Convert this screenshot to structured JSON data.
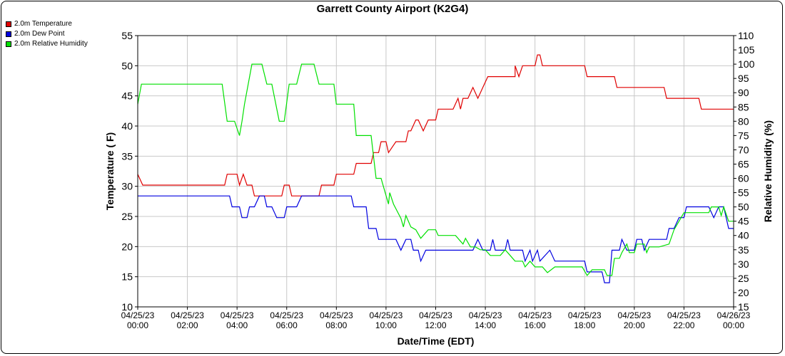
{
  "chart_data": {
    "type": "line",
    "title": "Garrett County Airport (K2G4)",
    "xlabel": "Date/Time (EDT)",
    "ylabel": "Temperature ( F)",
    "y2label": "Relative Humidity (%)",
    "xlim_hours": [
      0,
      24
    ],
    "ylim": [
      10,
      55
    ],
    "y2lim": [
      15,
      110
    ],
    "grid": true,
    "legend_position": "top-left",
    "x_ticks": [
      {
        "h": 0,
        "date": "04/25/23",
        "time": "00:00"
      },
      {
        "h": 2,
        "date": "04/25/23",
        "time": "02:00"
      },
      {
        "h": 4,
        "date": "04/25/23",
        "time": "04:00"
      },
      {
        "h": 6,
        "date": "04/25/23",
        "time": "06:00"
      },
      {
        "h": 8,
        "date": "04/25/23",
        "time": "08:00"
      },
      {
        "h": 10,
        "date": "04/25/23",
        "time": "10:00"
      },
      {
        "h": 12,
        "date": "04/25/23",
        "time": "12:00"
      },
      {
        "h": 14,
        "date": "04/25/23",
        "time": "14:00"
      },
      {
        "h": 16,
        "date": "04/25/23",
        "time": "16:00"
      },
      {
        "h": 18,
        "date": "04/25/23",
        "time": "18:00"
      },
      {
        "h": 20,
        "date": "04/25/23",
        "time": "20:00"
      },
      {
        "h": 22,
        "date": "04/25/23",
        "time": "22:00"
      },
      {
        "h": 24,
        "date": "04/26/23",
        "time": "00:00"
      }
    ],
    "y_ticks": [
      "10",
      "15",
      "20",
      "25",
      "30",
      "35",
      "40",
      "45",
      "50",
      "55"
    ],
    "y2_ticks": [
      "15",
      "20",
      "25",
      "30",
      "35",
      "40",
      "45",
      "50",
      "55",
      "60",
      "65",
      "70",
      "75",
      "80",
      "85",
      "90",
      "95",
      "100",
      "105",
      "110"
    ],
    "series": [
      {
        "name": "2.0m Temperature",
        "color": "#e00000",
        "axis": "left",
        "points": [
          [
            0.0,
            32
          ],
          [
            0.2,
            30.2
          ],
          [
            3.5,
            30.2
          ],
          [
            3.6,
            32
          ],
          [
            4.0,
            32
          ],
          [
            4.1,
            30.2
          ],
          [
            4.25,
            32
          ],
          [
            4.4,
            30.2
          ],
          [
            4.6,
            30.2
          ],
          [
            4.7,
            28.4
          ],
          [
            5.8,
            28.4
          ],
          [
            5.9,
            30.2
          ],
          [
            6.1,
            30.2
          ],
          [
            6.2,
            28.4
          ],
          [
            7.3,
            28.4
          ],
          [
            7.4,
            30.2
          ],
          [
            7.9,
            30.2
          ],
          [
            8.0,
            32
          ],
          [
            8.7,
            32
          ],
          [
            8.8,
            33.8
          ],
          [
            9.4,
            33.8
          ],
          [
            9.5,
            35.6
          ],
          [
            9.7,
            35.6
          ],
          [
            9.8,
            37.4
          ],
          [
            10.0,
            37.4
          ],
          [
            10.1,
            35.6
          ],
          [
            10.4,
            37.4
          ],
          [
            10.8,
            37.4
          ],
          [
            10.9,
            39.2
          ],
          [
            11.0,
            39.2
          ],
          [
            11.2,
            41
          ],
          [
            11.3,
            41
          ],
          [
            11.5,
            39.2
          ],
          [
            11.7,
            41
          ],
          [
            12.0,
            41
          ],
          [
            12.1,
            42.8
          ],
          [
            12.7,
            42.8
          ],
          [
            12.9,
            44.6
          ],
          [
            13.0,
            42.8
          ],
          [
            13.1,
            44.6
          ],
          [
            13.3,
            44.6
          ],
          [
            13.5,
            46.4
          ],
          [
            13.7,
            44.6
          ],
          [
            13.9,
            46.4
          ],
          [
            14.1,
            48.2
          ],
          [
            15.0,
            48.2
          ],
          [
            15.2,
            48.2
          ],
          [
            15.2,
            50
          ],
          [
            15.35,
            48.2
          ],
          [
            15.5,
            50
          ],
          [
            16.0,
            50
          ],
          [
            16.1,
            51.8
          ],
          [
            16.2,
            51.8
          ],
          [
            16.3,
            50
          ],
          [
            16.3,
            50
          ],
          [
            18.0,
            50
          ],
          [
            18.1,
            48.2
          ],
          [
            19.2,
            48.2
          ],
          [
            19.3,
            46.4
          ],
          [
            20.0,
            46.4
          ],
          [
            21.0,
            46.4
          ],
          [
            21.2,
            46.4
          ],
          [
            21.3,
            44.6
          ],
          [
            22.0,
            44.6
          ],
          [
            22.6,
            44.6
          ],
          [
            22.7,
            42.8
          ],
          [
            23.0,
            42.8
          ],
          [
            23.5,
            42.8
          ],
          [
            24.0,
            42.8
          ]
        ]
      },
      {
        "name": "2.0m Dew Point",
        "color": "#0000e0",
        "axis": "left",
        "points": [
          [
            0.0,
            28.4
          ],
          [
            3.7,
            28.4
          ],
          [
            3.8,
            26.6
          ],
          [
            4.1,
            26.6
          ],
          [
            4.2,
            24.8
          ],
          [
            4.4,
            24.8
          ],
          [
            4.5,
            26.6
          ],
          [
            4.7,
            26.6
          ],
          [
            4.9,
            28.4
          ],
          [
            5.1,
            28.4
          ],
          [
            5.2,
            26.6
          ],
          [
            5.4,
            26.6
          ],
          [
            5.6,
            24.8
          ],
          [
            5.9,
            24.8
          ],
          [
            6.0,
            26.6
          ],
          [
            6.4,
            26.6
          ],
          [
            6.6,
            28.4
          ],
          [
            8.6,
            28.4
          ],
          [
            8.7,
            26.6
          ],
          [
            9.2,
            26.6
          ],
          [
            9.3,
            23
          ],
          [
            9.6,
            23
          ],
          [
            9.7,
            21.2
          ],
          [
            10.4,
            21.2
          ],
          [
            10.6,
            19.4
          ],
          [
            10.8,
            21.2
          ],
          [
            11.0,
            21.2
          ],
          [
            11.1,
            19.4
          ],
          [
            11.3,
            19.4
          ],
          [
            11.4,
            17.6
          ],
          [
            11.6,
            19.4
          ],
          [
            13.5,
            19.4
          ],
          [
            13.7,
            21.2
          ],
          [
            13.9,
            19.4
          ],
          [
            14.2,
            19.4
          ],
          [
            14.3,
            21.2
          ],
          [
            14.4,
            19.4
          ],
          [
            14.8,
            19.4
          ],
          [
            14.9,
            21.2
          ],
          [
            15.0,
            19.4
          ],
          [
            15.5,
            19.4
          ],
          [
            15.6,
            17.6
          ],
          [
            15.8,
            19.4
          ],
          [
            15.9,
            17.6
          ],
          [
            16.1,
            19.4
          ],
          [
            16.2,
            17.6
          ],
          [
            16.6,
            19.4
          ],
          [
            16.8,
            17.6
          ],
          [
            18.0,
            17.6
          ],
          [
            18.1,
            15.8
          ],
          [
            18.7,
            15.8
          ],
          [
            18.8,
            14
          ],
          [
            19.0,
            14
          ],
          [
            19.1,
            19.4
          ],
          [
            19.4,
            19.4
          ],
          [
            19.5,
            21.2
          ],
          [
            19.7,
            19.4
          ],
          [
            20.0,
            19.4
          ],
          [
            20.1,
            21.2
          ],
          [
            20.3,
            21.2
          ],
          [
            20.4,
            19.4
          ],
          [
            20.6,
            21.2
          ],
          [
            21.0,
            21.2
          ],
          [
            21.3,
            21.2
          ],
          [
            21.4,
            23
          ],
          [
            21.6,
            23
          ],
          [
            21.8,
            24.8
          ],
          [
            22.0,
            24.8
          ],
          [
            22.1,
            26.6
          ],
          [
            23.0,
            26.6
          ],
          [
            23.2,
            24.8
          ],
          [
            23.4,
            26.6
          ],
          [
            23.6,
            26.6
          ],
          [
            23.8,
            23
          ],
          [
            24.0,
            23
          ]
        ]
      },
      {
        "name": "2.0m Relative Humidity",
        "color": "#00e000",
        "axis": "right",
        "points": [
          [
            0.0,
            86
          ],
          [
            0.15,
            93
          ],
          [
            3.4,
            93
          ],
          [
            3.6,
            80
          ],
          [
            3.9,
            80
          ],
          [
            4.1,
            75
          ],
          [
            4.2,
            80
          ],
          [
            4.3,
            86
          ],
          [
            4.6,
            100
          ],
          [
            5.0,
            100
          ],
          [
            5.2,
            93
          ],
          [
            5.4,
            93
          ],
          [
            5.7,
            80
          ],
          [
            5.9,
            80
          ],
          [
            6.1,
            93
          ],
          [
            6.4,
            93
          ],
          [
            6.6,
            100
          ],
          [
            7.1,
            100
          ],
          [
            7.3,
            93
          ],
          [
            7.9,
            93
          ],
          [
            8.0,
            86
          ],
          [
            8.7,
            86
          ],
          [
            8.8,
            75
          ],
          [
            9.4,
            75
          ],
          [
            9.6,
            60
          ],
          [
            9.8,
            60
          ],
          [
            10.0,
            54
          ],
          [
            10.1,
            51
          ],
          [
            10.15,
            55
          ],
          [
            10.3,
            51
          ],
          [
            10.6,
            46
          ],
          [
            10.7,
            43
          ],
          [
            10.8,
            47
          ],
          [
            11.0,
            43
          ],
          [
            11.2,
            42
          ],
          [
            11.4,
            39
          ],
          [
            11.7,
            42
          ],
          [
            12.0,
            42
          ],
          [
            12.1,
            40
          ],
          [
            12.8,
            40
          ],
          [
            13.0,
            38
          ],
          [
            13.1,
            37
          ],
          [
            13.2,
            39
          ],
          [
            13.4,
            36
          ],
          [
            13.6,
            36
          ],
          [
            13.8,
            35
          ],
          [
            14.0,
            35
          ],
          [
            14.2,
            33
          ],
          [
            14.6,
            33
          ],
          [
            14.8,
            35
          ],
          [
            15.0,
            33
          ],
          [
            15.2,
            31
          ],
          [
            15.5,
            31
          ],
          [
            15.6,
            29
          ],
          [
            15.8,
            31
          ],
          [
            16.0,
            29
          ],
          [
            16.3,
            29
          ],
          [
            16.5,
            27
          ],
          [
            16.8,
            29
          ],
          [
            17.9,
            29
          ],
          [
            18.1,
            26
          ],
          [
            18.3,
            28
          ],
          [
            18.8,
            28
          ],
          [
            18.9,
            26
          ],
          [
            19.1,
            26
          ],
          [
            19.2,
            32
          ],
          [
            19.4,
            32
          ],
          [
            19.5,
            34
          ],
          [
            19.7,
            37
          ],
          [
            19.8,
            34
          ],
          [
            20.0,
            34
          ],
          [
            20.1,
            37
          ],
          [
            20.4,
            37
          ],
          [
            20.5,
            34
          ],
          [
            20.6,
            36
          ],
          [
            21.0,
            36
          ],
          [
            21.4,
            37
          ],
          [
            21.6,
            42
          ],
          [
            21.8,
            45
          ],
          [
            22.0,
            48
          ],
          [
            23.0,
            48
          ],
          [
            23.1,
            50
          ],
          [
            23.4,
            50
          ],
          [
            23.5,
            47
          ],
          [
            23.6,
            50
          ],
          [
            23.8,
            45
          ],
          [
            24.0,
            45
          ]
        ]
      }
    ]
  }
}
